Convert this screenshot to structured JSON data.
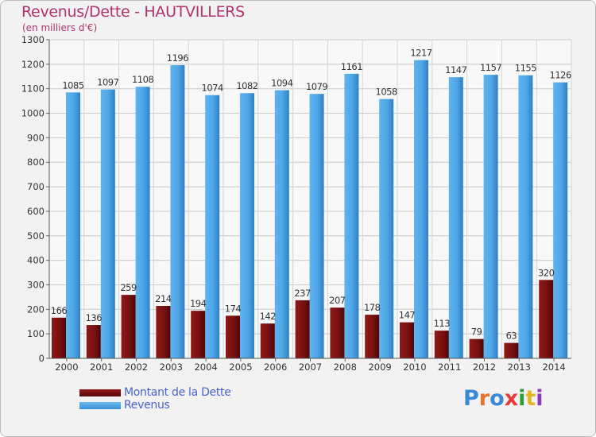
{
  "header": {
    "title": "Revenus/Dette - HAUTVILLERS",
    "subtitle": "(en milliers d'€)"
  },
  "legend": {
    "items": [
      {
        "label": "Montant de la Dette",
        "color": "#7a1010"
      },
      {
        "label": "Revenus",
        "color": "#4ea6e6"
      }
    ]
  },
  "logo": {
    "text": "Proxiti",
    "colors": [
      "#3a88d6",
      "#e8732a",
      "#3a88d6",
      "#e83a3a",
      "#2f9e3a",
      "#e8b52a",
      "#8a3ab8"
    ]
  },
  "chart_data": {
    "type": "bar",
    "title": "Revenus/Dette - HAUTVILLERS",
    "ylabel": "(en milliers d'€)",
    "xlabel": "",
    "categories": [
      "2000",
      "2001",
      "2002",
      "2003",
      "2004",
      "2005",
      "2006",
      "2007",
      "2008",
      "2009",
      "2010",
      "2011",
      "2012",
      "2013",
      "2014"
    ],
    "series": [
      {
        "name": "Montant de la Dette",
        "color": "#7a1010",
        "values": [
          166,
          136,
          259,
          214,
          194,
          174,
          142,
          237,
          207,
          178,
          147,
          113,
          79,
          63,
          320
        ],
        "labels": [
          "166",
          "136",
          "259",
          "214",
          "194",
          "174",
          "142",
          "237",
          "207",
          "178",
          "147",
          "113",
          "79",
          "63",
          "320"
        ]
      },
      {
        "name": "Revenus",
        "color": "#4ea6e6",
        "values": [
          1085,
          1097,
          1108,
          1196,
          1074,
          1082,
          1094,
          1079,
          1161,
          1058,
          1217,
          1147,
          1157,
          1155,
          1126
        ],
        "labels": [
          "1085",
          "1097",
          "1108",
          "1196",
          "1074",
          "1082",
          "1094",
          "1079",
          "1161",
          "1058",
          "1217",
          "1147",
          "1157",
          "1155",
          "1126"
        ]
      }
    ],
    "ylim": [
      0,
      1300
    ],
    "yticks": [
      "0",
      "100",
      "200",
      "300",
      "400",
      "500",
      "600",
      "700",
      "800",
      "900",
      "1000",
      "1100",
      "1200",
      "1300"
    ],
    "grid": true,
    "legend_position": "bottom-left"
  }
}
